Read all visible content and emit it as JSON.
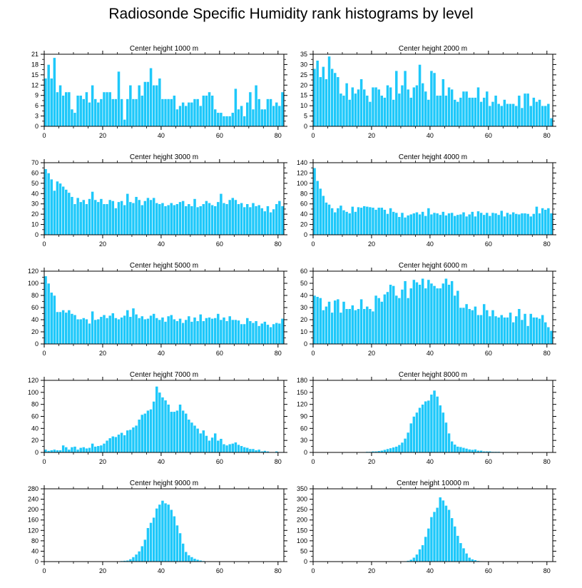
{
  "title": "Radiosonde Specific Humidity rank histograms by level",
  "colors": {
    "bar": "#1ec8fa",
    "bar_edge": "#ffffff",
    "axis": "#000000"
  },
  "chart_data": [
    {
      "type": "bar",
      "title": "Center height 1000 m",
      "xlim": [
        0,
        82
      ],
      "ylim": [
        0,
        21
      ],
      "xticks": [
        0,
        20,
        40,
        60,
        80
      ],
      "yticks": [
        0,
        3,
        6,
        9,
        12,
        15,
        18,
        21
      ],
      "x_start": 0,
      "values": [
        14,
        18,
        14,
        20,
        10,
        12,
        9,
        10,
        10,
        5,
        4,
        9,
        9,
        8,
        10,
        7,
        12,
        8,
        7,
        8,
        10,
        10,
        10,
        8,
        8,
        16,
        8,
        2,
        8,
        12,
        8,
        8,
        12,
        9,
        13,
        13,
        17,
        12,
        12,
        14,
        8,
        8,
        8,
        8,
        9,
        5,
        6,
        7,
        6,
        7,
        7,
        8,
        8,
        6,
        9,
        9,
        10,
        9,
        5,
        4,
        4,
        3,
        3,
        3,
        4,
        11,
        5,
        6,
        3,
        7,
        10,
        5,
        12,
        8,
        5,
        5,
        8,
        8,
        6,
        7,
        6,
        10
      ]
    },
    {
      "type": "bar",
      "title": "Center height 2000 m",
      "xlim": [
        0,
        82
      ],
      "ylim": [
        0,
        35
      ],
      "xticks": [
        0,
        20,
        40,
        60,
        80
      ],
      "yticks": [
        0,
        5,
        10,
        15,
        20,
        25,
        30,
        35
      ],
      "x_start": 0,
      "values": [
        28,
        32,
        24,
        29,
        23,
        34,
        28,
        26,
        24,
        16,
        15,
        21,
        13,
        19,
        16,
        18,
        23,
        18,
        15,
        12,
        19,
        19,
        18,
        15,
        14,
        20,
        19,
        13,
        27,
        16,
        20,
        27,
        18,
        14,
        19,
        20,
        30,
        21,
        17,
        13,
        27,
        26,
        15,
        15,
        23,
        15,
        19,
        18,
        13,
        12,
        14,
        17,
        17,
        14,
        14,
        14,
        19,
        12,
        14,
        17,
        10,
        12,
        15,
        11,
        10,
        13,
        11,
        11,
        11,
        10,
        15,
        9,
        16,
        16,
        10,
        14,
        12,
        13,
        10,
        10,
        11,
        4
      ]
    },
    {
      "type": "bar",
      "title": "Center height 3000 m",
      "xlim": [
        0,
        82
      ],
      "ylim": [
        0,
        70
      ],
      "xticks": [
        0,
        20,
        40,
        60,
        80
      ],
      "yticks": [
        0,
        10,
        20,
        30,
        40,
        50,
        60,
        70
      ],
      "x_start": 0,
      "values": [
        64,
        60,
        54,
        43,
        52,
        50,
        47,
        44,
        41,
        37,
        30,
        36,
        32,
        34,
        30,
        35,
        42,
        34,
        32,
        35,
        30,
        30,
        34,
        33,
        26,
        32,
        33,
        29,
        40,
        32,
        31,
        37,
        34,
        29,
        33,
        36,
        34,
        36,
        31,
        30,
        31,
        28,
        29,
        31,
        29,
        30,
        32,
        33,
        28,
        30,
        28,
        35,
        27,
        28,
        30,
        33,
        31,
        29,
        28,
        32,
        40,
        31,
        30,
        34,
        36,
        34,
        30,
        31,
        27,
        30,
        27,
        31,
        28,
        29,
        26,
        23,
        28,
        22,
        25,
        30,
        33,
        28
      ]
    },
    {
      "type": "bar",
      "title": "Center height 4000 m",
      "xlim": [
        0,
        82
      ],
      "ylim": [
        0,
        140
      ],
      "xticks": [
        0,
        20,
        40,
        60,
        80
      ],
      "yticks": [
        0,
        20,
        40,
        60,
        80,
        100,
        120,
        140
      ],
      "x_start": 0,
      "values": [
        130,
        105,
        90,
        76,
        63,
        59,
        52,
        44,
        52,
        57,
        48,
        45,
        42,
        55,
        45,
        54,
        53,
        56,
        55,
        54,
        53,
        49,
        53,
        53,
        49,
        41,
        52,
        45,
        43,
        35,
        43,
        34,
        38,
        40,
        42,
        44,
        40,
        45,
        37,
        52,
        40,
        43,
        42,
        39,
        45,
        38,
        42,
        43,
        37,
        39,
        40,
        44,
        36,
        40,
        45,
        36,
        46,
        43,
        39,
        43,
        37,
        43,
        42,
        39,
        47,
        36,
        43,
        40,
        44,
        41,
        40,
        42,
        42,
        41,
        36,
        41,
        55,
        42,
        52,
        49,
        52,
        42
      ]
    },
    {
      "type": "bar",
      "title": "Center height 5000 m",
      "xlim": [
        0,
        82
      ],
      "ylim": [
        0,
        120
      ],
      "xticks": [
        0,
        20,
        40,
        60,
        80
      ],
      "yticks": [
        0,
        20,
        40,
        60,
        80,
        100,
        120
      ],
      "x_start": 0,
      "values": [
        112,
        100,
        85,
        80,
        53,
        53,
        56,
        52,
        56,
        50,
        48,
        41,
        41,
        43,
        41,
        34,
        54,
        40,
        41,
        45,
        48,
        43,
        47,
        51,
        43,
        41,
        44,
        47,
        56,
        45,
        59,
        49,
        43,
        46,
        41,
        42,
        47,
        50,
        43,
        40,
        44,
        37,
        46,
        48,
        41,
        38,
        42,
        35,
        40,
        46,
        37,
        44,
        38,
        49,
        38,
        43,
        44,
        42,
        43,
        50,
        40,
        44,
        38,
        46,
        40,
        40,
        39,
        33,
        33,
        43,
        38,
        35,
        38,
        30,
        34,
        37,
        32,
        28,
        33,
        35,
        34,
        42
      ]
    },
    {
      "type": "bar",
      "title": "Center height 6000 m",
      "xlim": [
        0,
        82
      ],
      "ylim": [
        0,
        60
      ],
      "xticks": [
        0,
        20,
        40,
        60,
        80
      ],
      "yticks": [
        0,
        10,
        20,
        30,
        40,
        50,
        60
      ],
      "x_start": 0,
      "values": [
        40,
        39,
        38,
        28,
        31,
        35,
        26,
        36,
        37,
        26,
        35,
        29,
        29,
        32,
        28,
        29,
        37,
        29,
        31,
        29,
        27,
        40,
        38,
        35,
        41,
        43,
        49,
        48,
        40,
        38,
        45,
        52,
        38,
        46,
        53,
        51,
        49,
        54,
        46,
        53,
        50,
        48,
        46,
        46,
        50,
        54,
        49,
        52,
        40,
        44,
        30,
        30,
        33,
        29,
        28,
        31,
        24,
        24,
        33,
        28,
        23,
        28,
        23,
        22,
        24,
        22,
        22,
        26,
        18,
        23,
        29,
        20,
        25,
        15,
        25,
        22,
        22,
        21,
        24,
        18,
        14,
        11
      ]
    },
    {
      "type": "bar",
      "title": "Center height 7000 m",
      "xlim": [
        0,
        82
      ],
      "ylim": [
        0,
        120
      ],
      "xticks": [
        0,
        20,
        40,
        60,
        80
      ],
      "yticks": [
        0,
        20,
        40,
        60,
        80,
        100,
        120
      ],
      "x_start": 0,
      "values": [
        5,
        3,
        4,
        5,
        4,
        4,
        12,
        9,
        5,
        9,
        10,
        5,
        8,
        9,
        7,
        8,
        15,
        10,
        11,
        12,
        15,
        20,
        24,
        27,
        26,
        30,
        33,
        29,
        37,
        38,
        42,
        45,
        55,
        63,
        65,
        70,
        72,
        85,
        110,
        100,
        92,
        87,
        80,
        68,
        68,
        70,
        80,
        70,
        65,
        55,
        50,
        45,
        40,
        32,
        37,
        28,
        20,
        25,
        32,
        20,
        23,
        14,
        12,
        14,
        15,
        17,
        13,
        11,
        9,
        8,
        6,
        6,
        4,
        5,
        2,
        3,
        2,
        1,
        1,
        2,
        1,
        1
      ]
    },
    {
      "type": "bar",
      "title": "Center height 8000 m",
      "xlim": [
        0,
        82
      ],
      "ylim": [
        0,
        180
      ],
      "xticks": [
        0,
        20,
        40,
        60,
        80
      ],
      "yticks": [
        0,
        30,
        60,
        90,
        120,
        150,
        180
      ],
      "x_start": 0,
      "values": [
        0,
        0,
        0,
        0,
        0,
        0,
        0,
        0,
        0,
        0,
        0,
        0,
        0,
        0,
        0,
        0,
        0,
        1,
        2,
        2,
        3,
        3,
        4,
        5,
        7,
        9,
        11,
        13,
        15,
        19,
        25,
        35,
        50,
        73,
        90,
        100,
        112,
        120,
        128,
        130,
        145,
        155,
        140,
        118,
        100,
        75,
        48,
        28,
        20,
        15,
        14,
        12,
        10,
        8,
        7,
        8,
        5,
        5,
        3,
        3,
        3,
        2,
        2,
        2,
        1,
        1,
        1,
        1,
        1,
        0,
        0,
        0,
        1,
        0,
        0,
        0,
        0,
        0,
        0,
        0,
        0,
        0
      ]
    },
    {
      "type": "bar",
      "title": "Center height 9000 m",
      "xlim": [
        0,
        82
      ],
      "ylim": [
        0,
        280
      ],
      "xticks": [
        0,
        20,
        40,
        60,
        80
      ],
      "yticks": [
        0,
        40,
        80,
        120,
        160,
        200,
        240,
        280
      ],
      "x_start": 0,
      "values": [
        0,
        0,
        0,
        0,
        0,
        0,
        0,
        0,
        0,
        0,
        0,
        0,
        0,
        0,
        0,
        0,
        0,
        0,
        0,
        0,
        0,
        0,
        0,
        1,
        2,
        2,
        3,
        4,
        5,
        10,
        18,
        28,
        40,
        60,
        85,
        130,
        150,
        170,
        205,
        220,
        235,
        225,
        220,
        200,
        175,
        140,
        110,
        70,
        38,
        25,
        18,
        12,
        8,
        5,
        3,
        2,
        1,
        1,
        0,
        0,
        0,
        0,
        0,
        0,
        0,
        0,
        0,
        0,
        0,
        0,
        0,
        0,
        0,
        0,
        0,
        0,
        0,
        0,
        0,
        0,
        0,
        0
      ]
    },
    {
      "type": "bar",
      "title": "Center height 10000 m",
      "xlim": [
        0,
        82
      ],
      "ylim": [
        0,
        350
      ],
      "xticks": [
        0,
        20,
        40,
        60,
        80
      ],
      "yticks": [
        0,
        50,
        100,
        150,
        200,
        250,
        300,
        350
      ],
      "x_start": 0,
      "values": [
        0,
        0,
        0,
        0,
        0,
        0,
        0,
        0,
        0,
        0,
        0,
        0,
        0,
        0,
        0,
        0,
        0,
        0,
        0,
        0,
        0,
        0,
        0,
        0,
        0,
        0,
        0,
        0,
        0,
        1,
        2,
        3,
        5,
        10,
        20,
        35,
        60,
        80,
        120,
        160,
        215,
        240,
        260,
        310,
        295,
        270,
        250,
        210,
        170,
        125,
        90,
        65,
        40,
        20,
        12,
        8,
        4,
        3,
        2,
        1,
        1,
        1,
        0,
        0,
        0,
        1,
        0,
        0,
        0,
        0,
        0,
        0,
        0,
        1,
        0,
        0,
        0,
        0,
        0,
        0,
        0,
        0
      ]
    }
  ]
}
